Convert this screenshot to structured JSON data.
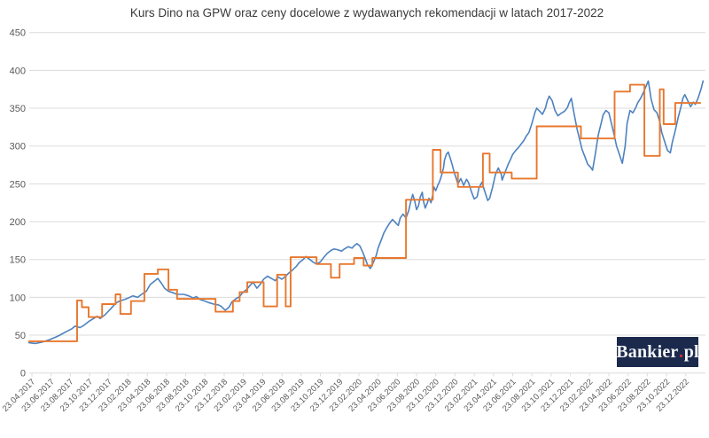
{
  "branding": {
    "name": "Bankier.pl",
    "part1": "Bankier",
    "dot": ".",
    "part2": "pl",
    "bg_color": "#1b2a4c",
    "dot_color": "#d02f3d"
  },
  "chart_data": {
    "type": "line",
    "title": "Kurs Dino na GPW oraz ceny docelowe z wydawanych rekomendacji w latach 2017-2022",
    "legend": "none",
    "grid": "horizontal",
    "background": "#ffffff",
    "grid_color": "#dcdcdc",
    "axis_text_color": "#595959",
    "x_axis": {
      "unit": "months since first tick (23.04.2017)",
      "months_per_tick": 2,
      "tick_labels": [
        "23.04.2017",
        "23.06.2017",
        "23.08.2017",
        "23.10.2017",
        "23.12.2017",
        "23.02.2018",
        "23.04.2018",
        "23.06.2018",
        "23.08.2018",
        "23.10.2018",
        "23.12.2018",
        "23.02.2019",
        "23.04.2019",
        "23.06.2019",
        "23.08.2019",
        "23.10.2019",
        "23.12.2019",
        "23.02.2020",
        "23.04.2020",
        "23.06.2020",
        "23.08.2020",
        "23.10.2020",
        "23.12.2020",
        "23.02.2021",
        "23.04.2021",
        "23.06.2021",
        "23.08.2021",
        "23.10.2021",
        "23.12.2021",
        "23.02.2022",
        "23.04.2022",
        "23.06.2022",
        "23.08.2022",
        "23.10.2022",
        "23.12.2022"
      ]
    },
    "y_axis": {
      "min": 0,
      "max": 450,
      "step": 50
    },
    "series": [
      {
        "name": "Kurs Dino na GPW",
        "mode": "line",
        "color": "#4d82be",
        "width": 1.6,
        "points": [
          [
            -0.3,
            40
          ],
          [
            0.4,
            39
          ],
          [
            1.1,
            41
          ],
          [
            1.8,
            44
          ],
          [
            2.4,
            47
          ],
          [
            2.9,
            50
          ],
          [
            3.6,
            55
          ],
          [
            4.1,
            58
          ],
          [
            4.5,
            62
          ],
          [
            5,
            60
          ],
          [
            5.4,
            63
          ],
          [
            5.9,
            68
          ],
          [
            6.4,
            72
          ],
          [
            6.8,
            75
          ],
          [
            7.1,
            72
          ],
          [
            7.6,
            77
          ],
          [
            8.2,
            85
          ],
          [
            8.7,
            92
          ],
          [
            9.1,
            95
          ],
          [
            9.6,
            97
          ],
          [
            10,
            99
          ],
          [
            10.5,
            102
          ],
          [
            11,
            100
          ],
          [
            11.4,
            104
          ],
          [
            11.9,
            108
          ],
          [
            12.3,
            117
          ],
          [
            12.8,
            122
          ],
          [
            13.1,
            125
          ],
          [
            13.5,
            118
          ],
          [
            13.8,
            112
          ],
          [
            14.2,
            108
          ],
          [
            14.7,
            106
          ],
          [
            15.1,
            104
          ],
          [
            15.8,
            104
          ],
          [
            16.3,
            102
          ],
          [
            16.8,
            99
          ],
          [
            17.1,
            101
          ],
          [
            17.5,
            97
          ],
          [
            18,
            95
          ],
          [
            18.4,
            93
          ],
          [
            18.9,
            91
          ],
          [
            19.4,
            90
          ],
          [
            19.7,
            88
          ],
          [
            20.1,
            83
          ],
          [
            20.5,
            87
          ],
          [
            20.8,
            94
          ],
          [
            21.2,
            98
          ],
          [
            21.6,
            101
          ],
          [
            21.9,
            106
          ],
          [
            22.3,
            110
          ],
          [
            22.7,
            116
          ],
          [
            23,
            120
          ],
          [
            23.4,
            112
          ],
          [
            23.8,
            118
          ],
          [
            24.1,
            124
          ],
          [
            24.5,
            128
          ],
          [
            24.9,
            125
          ],
          [
            25.3,
            122
          ],
          [
            25.6,
            127
          ],
          [
            26,
            124
          ],
          [
            26.4,
            128
          ],
          [
            26.7,
            132
          ],
          [
            27.1,
            136
          ],
          [
            27.5,
            141
          ],
          [
            27.8,
            146
          ],
          [
            28.2,
            150
          ],
          [
            28.5,
            154
          ],
          [
            28.8,
            151
          ],
          [
            29.2,
            147
          ],
          [
            29.6,
            144
          ],
          [
            30,
            147
          ],
          [
            30.3,
            152
          ],
          [
            30.7,
            158
          ],
          [
            31.1,
            162
          ],
          [
            31.4,
            164
          ],
          [
            31.8,
            163
          ],
          [
            32.2,
            161
          ],
          [
            32.5,
            164
          ],
          [
            32.9,
            167
          ],
          [
            33.3,
            165
          ],
          [
            33.5,
            168
          ],
          [
            33.8,
            171
          ],
          [
            34.1,
            168
          ],
          [
            34.4,
            160
          ],
          [
            34.7,
            150
          ],
          [
            34.9,
            143
          ],
          [
            35.2,
            138
          ],
          [
            35.5,
            146
          ],
          [
            35.8,
            155
          ],
          [
            36,
            165
          ],
          [
            36.3,
            175
          ],
          [
            36.6,
            185
          ],
          [
            36.9,
            192
          ],
          [
            37.2,
            198
          ],
          [
            37.5,
            203
          ],
          [
            37.8,
            199
          ],
          [
            38.1,
            195
          ],
          [
            38.3,
            205
          ],
          [
            38.6,
            210
          ],
          [
            38.9,
            205
          ],
          [
            39.2,
            215
          ],
          [
            39.4,
            227
          ],
          [
            39.6,
            236
          ],
          [
            39.8,
            228
          ],
          [
            40,
            216
          ],
          [
            40.2,
            221
          ],
          [
            40.4,
            233
          ],
          [
            40.6,
            239
          ],
          [
            40.7,
            228
          ],
          [
            40.9,
            218
          ],
          [
            41.1,
            224
          ],
          [
            41.3,
            231
          ],
          [
            41.5,
            225
          ],
          [
            41.7,
            236
          ],
          [
            41.8,
            246
          ],
          [
            42,
            241
          ],
          [
            42.2,
            248
          ],
          [
            42.4,
            253
          ],
          [
            42.6,
            261
          ],
          [
            42.8,
            271
          ],
          [
            42.9,
            281
          ],
          [
            43.1,
            289
          ],
          [
            43.3,
            292
          ],
          [
            43.5,
            284
          ],
          [
            43.7,
            276
          ],
          [
            43.9,
            266
          ],
          [
            44.1,
            258
          ],
          [
            44.3,
            250
          ],
          [
            44.6,
            257
          ],
          [
            44.9,
            248
          ],
          [
            45.2,
            256
          ],
          [
            45.4,
            252
          ],
          [
            45.7,
            240
          ],
          [
            46,
            230
          ],
          [
            46.3,
            233
          ],
          [
            46.5,
            245
          ],
          [
            46.8,
            252
          ],
          [
            47.1,
            240
          ],
          [
            47.4,
            228
          ],
          [
            47.6,
            231
          ],
          [
            47.9,
            245
          ],
          [
            48.2,
            262
          ],
          [
            48.5,
            271
          ],
          [
            48.8,
            263
          ],
          [
            48.9,
            255
          ],
          [
            49.2,
            265
          ],
          [
            49.5,
            275
          ],
          [
            49.8,
            283
          ],
          [
            50,
            289
          ],
          [
            50.3,
            294
          ],
          [
            50.6,
            298
          ],
          [
            50.9,
            303
          ],
          [
            51.2,
            308
          ],
          [
            51.4,
            313
          ],
          [
            51.7,
            318
          ],
          [
            52,
            330
          ],
          [
            52.3,
            344
          ],
          [
            52.5,
            350
          ],
          [
            52.8,
            346
          ],
          [
            53.1,
            342
          ],
          [
            53.4,
            350
          ],
          [
            53.6,
            360
          ],
          [
            53.8,
            366
          ],
          [
            54.1,
            360
          ],
          [
            54.4,
            347
          ],
          [
            54.7,
            340
          ],
          [
            55,
            343
          ],
          [
            55.4,
            346
          ],
          [
            55.7,
            351
          ],
          [
            55.9,
            358
          ],
          [
            56.1,
            363
          ],
          [
            56.4,
            342
          ],
          [
            56.7,
            322
          ],
          [
            57,
            307
          ],
          [
            57.2,
            296
          ],
          [
            57.5,
            286
          ],
          [
            57.8,
            276
          ],
          [
            58.1,
            272
          ],
          [
            58.3,
            268
          ],
          [
            58.6,
            290
          ],
          [
            58.9,
            315
          ],
          [
            59.2,
            330
          ],
          [
            59.4,
            341
          ],
          [
            59.7,
            347
          ],
          [
            60,
            344
          ],
          [
            60.3,
            328
          ],
          [
            60.6,
            312
          ],
          [
            60.8,
            300
          ],
          [
            61.1,
            289
          ],
          [
            61.4,
            277
          ],
          [
            61.7,
            300
          ],
          [
            61.9,
            330
          ],
          [
            62.2,
            347
          ],
          [
            62.5,
            344
          ],
          [
            62.8,
            351
          ],
          [
            63,
            357
          ],
          [
            63.3,
            363
          ],
          [
            63.6,
            371
          ],
          [
            63.9,
            380
          ],
          [
            64.1,
            386
          ],
          [
            64.2,
            378
          ],
          [
            64.4,
            362
          ],
          [
            64.7,
            348
          ],
          [
            65,
            344
          ],
          [
            65.3,
            332
          ],
          [
            65.5,
            318
          ],
          [
            65.8,
            306
          ],
          [
            66.1,
            294
          ],
          [
            66.4,
            291
          ],
          [
            66.6,
            305
          ],
          [
            66.9,
            320
          ],
          [
            67.2,
            337
          ],
          [
            67.5,
            352
          ],
          [
            67.7,
            363
          ],
          [
            67.9,
            368
          ],
          [
            68.2,
            360
          ],
          [
            68.5,
            352
          ],
          [
            68.8,
            358
          ],
          [
            69,
            355
          ],
          [
            69.3,
            364
          ],
          [
            69.6,
            376
          ],
          [
            69.8,
            386
          ]
        ]
      },
      {
        "name": "Ceny docelowe z wydawanych rekomendacji",
        "mode": "step",
        "color": "#e8772e",
        "width": 1.9,
        "points": [
          [
            -0.3,
            42
          ],
          [
            4.7,
            96
          ],
          [
            5.2,
            87
          ],
          [
            5.9,
            74
          ],
          [
            7.3,
            91
          ],
          [
            8.7,
            104
          ],
          [
            9.2,
            78
          ],
          [
            10.3,
            95
          ],
          [
            11.7,
            131
          ],
          [
            13.1,
            137
          ],
          [
            14.2,
            110
          ],
          [
            15.1,
            98
          ],
          [
            19.1,
            81
          ],
          [
            20.9,
            95
          ],
          [
            21.6,
            107
          ],
          [
            22.4,
            120
          ],
          [
            24.1,
            88
          ],
          [
            25.5,
            130
          ],
          [
            26.4,
            88
          ],
          [
            26.9,
            153
          ],
          [
            29.6,
            144
          ],
          [
            31.1,
            126
          ],
          [
            32,
            144
          ],
          [
            33.5,
            152
          ],
          [
            34.5,
            142
          ],
          [
            35.4,
            152
          ],
          [
            38.9,
            229
          ],
          [
            41.7,
            295
          ],
          [
            42.5,
            265
          ],
          [
            44.3,
            246
          ],
          [
            46.9,
            290
          ],
          [
            47.6,
            265
          ],
          [
            49.9,
            257
          ],
          [
            52.5,
            326
          ],
          [
            57.1,
            310
          ],
          [
            60.6,
            372
          ],
          [
            62.2,
            381
          ],
          [
            63.7,
            287
          ],
          [
            65.3,
            375
          ],
          [
            65.7,
            329
          ],
          [
            66.9,
            357
          ],
          [
            69.5,
            357
          ]
        ]
      }
    ]
  }
}
